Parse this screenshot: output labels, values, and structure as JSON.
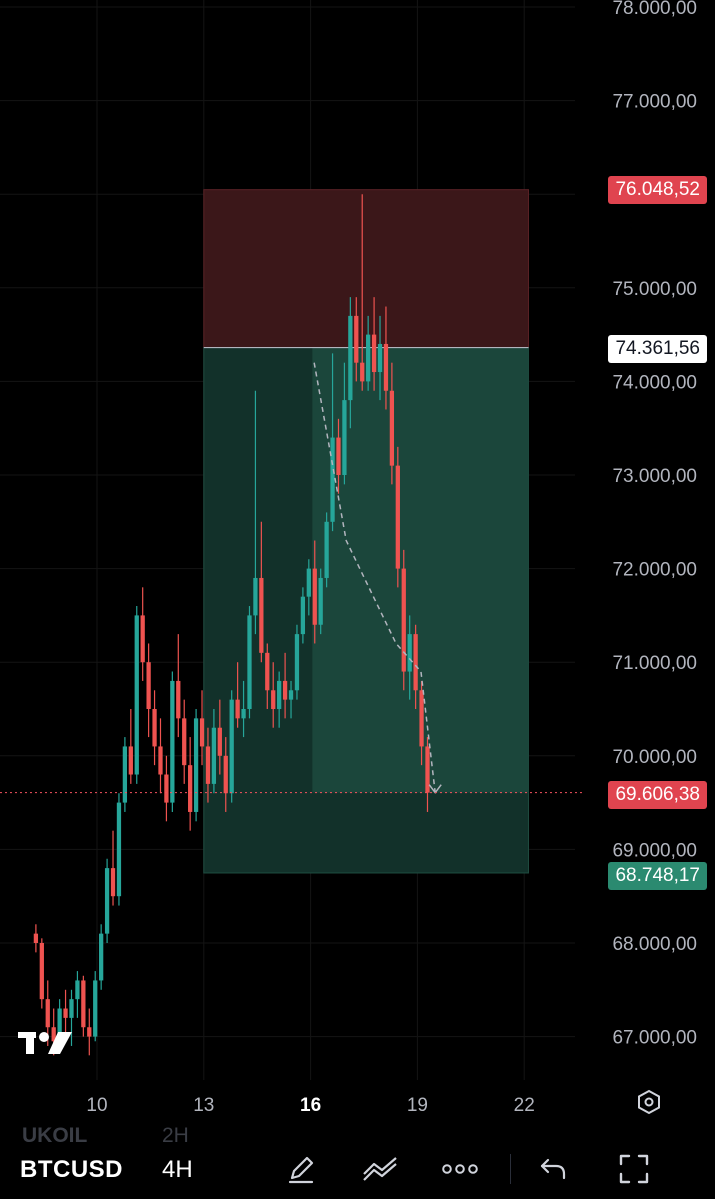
{
  "chart_data": {
    "type": "candlestick",
    "symbol": "BTCUSD",
    "interval": "4H",
    "ylim": [
      66700,
      78100
    ],
    "y_ticks": [
      "78.000,00",
      "77.000,00",
      "76.000,00",
      "75.000,00",
      "74.000,00",
      "73.000,00",
      "72.000,00",
      "71.000,00",
      "70.000,00",
      "69.000,00",
      "68.000,00",
      "67.000,00"
    ],
    "y_tick_values": [
      78000,
      77000,
      76000,
      75000,
      74000,
      73000,
      72000,
      71000,
      70000,
      69000,
      68000,
      67000
    ],
    "x_ticks": [
      {
        "label": "10",
        "day": 10,
        "bold": false
      },
      {
        "label": "13",
        "day": 13,
        "bold": false
      },
      {
        "label": "16",
        "day": 16,
        "bold": true
      },
      {
        "label": "19",
        "day": 19,
        "bold": false
      },
      {
        "label": "22",
        "day": 22,
        "bold": false
      }
    ],
    "xlim_days": [
      8.2,
      24.0
    ],
    "candle_start_day": 8.2,
    "candles_per_day": 6,
    "candles": [
      [
        68100,
        68200,
        67900,
        68000
      ],
      [
        68000,
        68050,
        67300,
        67400
      ],
      [
        67400,
        67600,
        66900,
        67100
      ],
      [
        67100,
        67300,
        66800,
        66950
      ],
      [
        66950,
        67400,
        66900,
        67300
      ],
      [
        67300,
        67500,
        67000,
        67200
      ],
      [
        67200,
        67500,
        66900,
        67400
      ],
      [
        67400,
        67700,
        67200,
        67600
      ],
      [
        67600,
        67650,
        67000,
        67100
      ],
      [
        67100,
        67300,
        66800,
        67000
      ],
      [
        67000,
        67700,
        66950,
        67600
      ],
      [
        67600,
        68200,
        67500,
        68100
      ],
      [
        68100,
        68900,
        68000,
        68800
      ],
      [
        68800,
        69200,
        68400,
        68500
      ],
      [
        68500,
        69600,
        68400,
        69500
      ],
      [
        69500,
        70200,
        69400,
        70100
      ],
      [
        70100,
        70500,
        69700,
        69800
      ],
      [
        69800,
        71600,
        69700,
        71500
      ],
      [
        71500,
        71800,
        70800,
        71000
      ],
      [
        71000,
        71200,
        70200,
        70500
      ],
      [
        70500,
        70700,
        69900,
        70100
      ],
      [
        70100,
        70400,
        69600,
        69800
      ],
      [
        69800,
        70000,
        69300,
        69500
      ],
      [
        69500,
        70900,
        69400,
        70800
      ],
      [
        70800,
        71300,
        70200,
        70400
      ],
      [
        70400,
        70600,
        69700,
        69900
      ],
      [
        69900,
        70200,
        69200,
        69400
      ],
      [
        69400,
        70500,
        69300,
        70400
      ],
      [
        70400,
        70700,
        69900,
        70100
      ],
      [
        70100,
        70300,
        69500,
        69700
      ],
      [
        69700,
        70500,
        69600,
        70300
      ],
      [
        70300,
        70600,
        69800,
        70000
      ],
      [
        70000,
        70200,
        69400,
        69600
      ],
      [
        69600,
        70700,
        69500,
        70600
      ],
      [
        70600,
        71000,
        70300,
        70400
      ],
      [
        70400,
        70800,
        70200,
        70500
      ],
      [
        70500,
        71600,
        70400,
        71500
      ],
      [
        71500,
        73900,
        71300,
        71900
      ],
      [
        71900,
        72500,
        71000,
        71100
      ],
      [
        71100,
        71200,
        70500,
        70700
      ],
      [
        70700,
        71000,
        70300,
        70500
      ],
      [
        70500,
        70900,
        70300,
        70800
      ],
      [
        70800,
        71100,
        70400,
        70600
      ],
      [
        70600,
        70800,
        70400,
        70700
      ],
      [
        70700,
        71400,
        70600,
        71300
      ],
      [
        71300,
        71800,
        71200,
        71700
      ],
      [
        71700,
        72100,
        71500,
        72000
      ],
      [
        72000,
        72300,
        71200,
        71400
      ],
      [
        71400,
        72000,
        71300,
        71900
      ],
      [
        71900,
        72600,
        71800,
        72500
      ],
      [
        72500,
        74300,
        72400,
        73400
      ],
      [
        73400,
        73600,
        72800,
        73000
      ],
      [
        73000,
        74200,
        72900,
        73800
      ],
      [
        73800,
        74900,
        73500,
        74700
      ],
      [
        74700,
        74900,
        74000,
        74200
      ],
      [
        74200,
        76000,
        73900,
        74000
      ],
      [
        74000,
        74700,
        73900,
        74500
      ],
      [
        74500,
        74900,
        73900,
        74100
      ],
      [
        74100,
        74700,
        73800,
        74400
      ],
      [
        74400,
        74800,
        73700,
        73900
      ],
      [
        73900,
        74200,
        72900,
        73100
      ],
      [
        73100,
        73300,
        71800,
        72000
      ],
      [
        72000,
        72200,
        70700,
        70900
      ],
      [
        70900,
        71500,
        70600,
        71300
      ],
      [
        71300,
        71400,
        70500,
        70700
      ],
      [
        70700,
        70800,
        69900,
        70100
      ],
      [
        70100,
        70200,
        69400,
        69606.38
      ]
    ],
    "position": {
      "type": "short",
      "entry": 74361.56,
      "stop": 76048.52,
      "target": 68748.17,
      "start_day": 13.0,
      "end_day": 22.12
    },
    "projection_path": [
      [
        16.1,
        74200
      ],
      [
        17.0,
        72300
      ],
      [
        18.4,
        71200
      ],
      [
        19.1,
        70900
      ],
      [
        19.5,
        69606.38
      ]
    ],
    "price_labels": {
      "stop": "76.048,52",
      "entry": "74.361,56",
      "last": "69.606,38",
      "target": "68.748,17"
    },
    "last_price": 69606.38
  },
  "colors": {
    "up": "#26a69a",
    "down": "#ef5350",
    "risk_zone": "#3b1719",
    "reward_zone": "#12312a",
    "reward_zone_bright": "#1d4a3e",
    "price_line": "#f7525f",
    "grid": "#141414"
  },
  "bottom_bar": {
    "symbol": "BTCUSD",
    "interval": "4H",
    "ghost_symbol": "UKOIL",
    "ghost_interval": "2H"
  },
  "icons": {
    "settings": "hexagon-settings-icon",
    "draw": "pencil-icon",
    "indicators": "trend-lines-icon",
    "more": "more-horizontal-icon",
    "undo": "undo-icon",
    "fullscreen": "fullscreen-icon",
    "logo": "tradingview-logo"
  }
}
